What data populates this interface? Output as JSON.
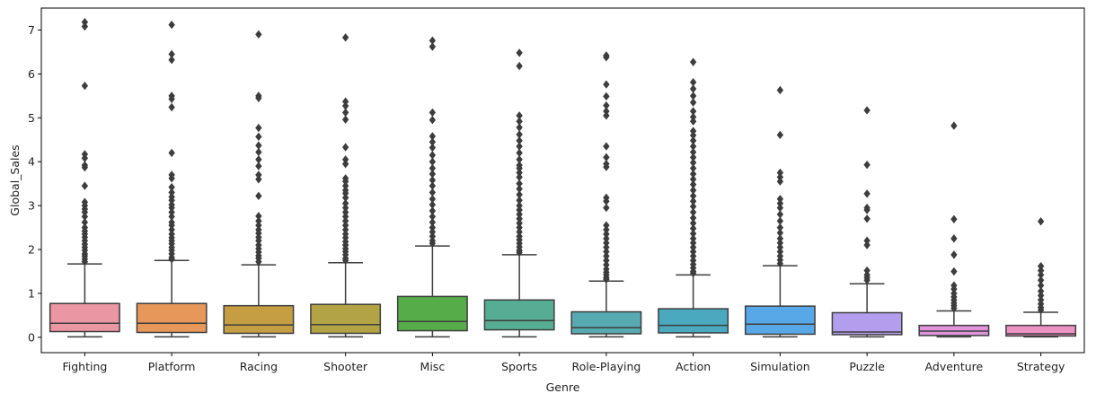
{
  "chart_data": {
    "type": "box",
    "title": "",
    "xlabel": "Genre",
    "ylabel": "Global_Sales",
    "ylim": [
      -0.35,
      7.5
    ],
    "yticks": [
      0,
      1,
      2,
      3,
      4,
      5,
      6,
      7
    ],
    "grid": false,
    "legend": "none",
    "box_edge_color": "#3d3d3d",
    "categories": [
      "Fighting",
      "Platform",
      "Racing",
      "Shooter",
      "Misc",
      "Sports",
      "Role-Playing",
      "Action",
      "Simulation",
      "Puzzle",
      "Adventure",
      "Strategy"
    ],
    "boxes": [
      {
        "category": "Fighting",
        "color": "#ea96a3",
        "whisker_low": 0.01,
        "q1": 0.13,
        "median": 0.32,
        "q3": 0.77,
        "whisker_high": 1.67,
        "outliers": [
          7.18,
          7.08,
          5.73,
          4.17,
          4.08,
          3.92,
          3.87,
          3.45,
          3.08,
          3.0,
          2.92,
          2.85,
          2.75,
          2.62,
          2.5,
          2.42,
          2.35,
          2.28,
          2.2,
          2.12,
          2.05,
          1.98,
          1.9,
          1.85,
          1.78,
          1.72
        ]
      },
      {
        "category": "Platform",
        "color": "#e7975a",
        "whisker_low": 0.01,
        "q1": 0.11,
        "median": 0.32,
        "q3": 0.77,
        "whisker_high": 1.75,
        "outliers": [
          7.12,
          6.45,
          6.32,
          5.5,
          5.43,
          5.24,
          4.2,
          3.7,
          3.62,
          3.42,
          3.3,
          3.2,
          3.12,
          3.02,
          2.95,
          2.85,
          2.75,
          2.62,
          2.55,
          2.45,
          2.35,
          2.27,
          2.2,
          2.13,
          2.05,
          1.98,
          1.9,
          1.82,
          1.78
        ]
      },
      {
        "category": "Racing",
        "color": "#c59d43",
        "whisker_low": 0.01,
        "q1": 0.09,
        "median": 0.28,
        "q3": 0.72,
        "whisker_high": 1.65,
        "outliers": [
          6.9,
          5.5,
          5.45,
          4.77,
          4.57,
          4.37,
          4.22,
          4.05,
          3.9,
          3.7,
          3.6,
          3.22,
          2.76,
          2.65,
          2.55,
          2.45,
          2.37,
          2.28,
          2.2,
          2.1,
          2.02,
          1.94,
          1.86,
          1.8,
          1.72
        ]
      },
      {
        "category": "Shooter",
        "color": "#b2a344",
        "whisker_low": 0.01,
        "q1": 0.09,
        "median": 0.29,
        "q3": 0.75,
        "whisker_high": 1.7,
        "outliers": [
          6.83,
          5.37,
          5.27,
          5.12,
          4.96,
          4.33,
          4.05,
          3.95,
          3.62,
          3.55,
          3.45,
          3.35,
          3.28,
          3.18,
          3.05,
          2.95,
          2.85,
          2.75,
          2.65,
          2.55,
          2.45,
          2.35,
          2.27,
          2.18,
          2.1,
          2.02,
          1.95,
          1.88,
          1.8,
          1.75
        ]
      },
      {
        "category": "Misc",
        "color": "#56ac49",
        "whisker_low": 0.01,
        "q1": 0.15,
        "median": 0.36,
        "q3": 0.93,
        "whisker_high": 2.08,
        "outliers": [
          6.76,
          6.62,
          5.12,
          4.95,
          4.58,
          4.45,
          4.32,
          4.15,
          4.0,
          3.85,
          3.72,
          3.58,
          3.45,
          3.3,
          3.15,
          3.02,
          2.88,
          2.75,
          2.62,
          2.5,
          2.4,
          2.3,
          2.2,
          2.14
        ]
      },
      {
        "category": "Sports",
        "color": "#56ad93",
        "whisker_low": 0.01,
        "q1": 0.17,
        "median": 0.38,
        "q3": 0.85,
        "whisker_high": 1.88,
        "outliers": [
          6.48,
          6.18,
          5.05,
          4.92,
          4.78,
          4.62,
          4.48,
          4.35,
          4.2,
          4.05,
          3.92,
          3.85,
          3.75,
          3.65,
          3.5,
          3.38,
          3.25,
          3.12,
          3.0,
          2.9,
          2.8,
          2.7,
          2.6,
          2.5,
          2.4,
          2.3,
          2.22,
          2.14,
          2.06,
          1.98,
          1.93
        ]
      },
      {
        "category": "Role-Playing",
        "color": "#58aab2",
        "whisker_low": 0.01,
        "q1": 0.08,
        "median": 0.22,
        "q3": 0.58,
        "whisker_high": 1.28,
        "outliers": [
          6.42,
          6.38,
          5.76,
          5.49,
          5.28,
          5.15,
          5.05,
          4.35,
          4.1,
          3.95,
          3.88,
          3.18,
          3.1,
          2.95,
          2.55,
          2.45,
          2.35,
          2.25,
          2.15,
          2.05,
          1.95,
          1.85,
          1.75,
          1.65,
          1.55,
          1.48,
          1.42,
          1.36,
          1.32
        ]
      },
      {
        "category": "Action",
        "color": "#4aa9bf",
        "whisker_low": 0.01,
        "q1": 0.1,
        "median": 0.27,
        "q3": 0.65,
        "whisker_high": 1.42,
        "outliers": [
          6.27,
          5.81,
          5.66,
          5.5,
          5.35,
          5.15,
          5.02,
          4.92,
          4.7,
          4.6,
          4.48,
          4.35,
          4.22,
          4.1,
          3.98,
          3.85,
          3.72,
          3.6,
          3.48,
          3.35,
          3.22,
          3.1,
          2.98,
          2.85,
          2.72,
          2.6,
          2.48,
          2.36,
          2.25,
          2.15,
          2.05,
          1.95,
          1.85,
          1.75,
          1.66,
          1.58,
          1.5,
          1.46
        ]
      },
      {
        "category": "Simulation",
        "color": "#58a8e8",
        "whisker_low": 0.01,
        "q1": 0.07,
        "median": 0.3,
        "q3": 0.71,
        "whisker_high": 1.63,
        "outliers": [
          5.63,
          4.61,
          3.75,
          3.65,
          3.55,
          3.15,
          3.05,
          2.95,
          2.8,
          2.65,
          2.5,
          2.38,
          2.25,
          2.15,
          2.05,
          1.95,
          1.85,
          1.76,
          1.68
        ]
      },
      {
        "category": "Puzzle",
        "color": "#b39ded",
        "whisker_low": 0.01,
        "q1": 0.06,
        "median": 0.12,
        "q3": 0.56,
        "whisker_high": 1.22,
        "outliers": [
          5.17,
          3.93,
          3.27,
          2.95,
          2.9,
          2.7,
          2.2,
          2.1,
          1.52,
          1.42,
          1.36,
          1.3
        ]
      },
      {
        "category": "Adventure",
        "color": "#df94dc",
        "whisker_low": 0.01,
        "q1": 0.04,
        "median": 0.14,
        "q3": 0.27,
        "whisker_high": 0.6,
        "outliers": [
          4.82,
          2.69,
          2.25,
          1.88,
          1.5,
          1.18,
          1.1,
          1.0,
          0.92,
          0.85,
          0.78,
          0.72,
          0.66
        ]
      },
      {
        "category": "Strategy",
        "color": "#ec93c4",
        "whisker_low": 0.01,
        "q1": 0.03,
        "median": 0.08,
        "q3": 0.27,
        "whisker_high": 0.57,
        "outliers": [
          2.64,
          1.62,
          1.52,
          1.42,
          1.3,
          1.18,
          1.05,
          0.95,
          0.85,
          0.76,
          0.68,
          0.62
        ]
      }
    ]
  }
}
